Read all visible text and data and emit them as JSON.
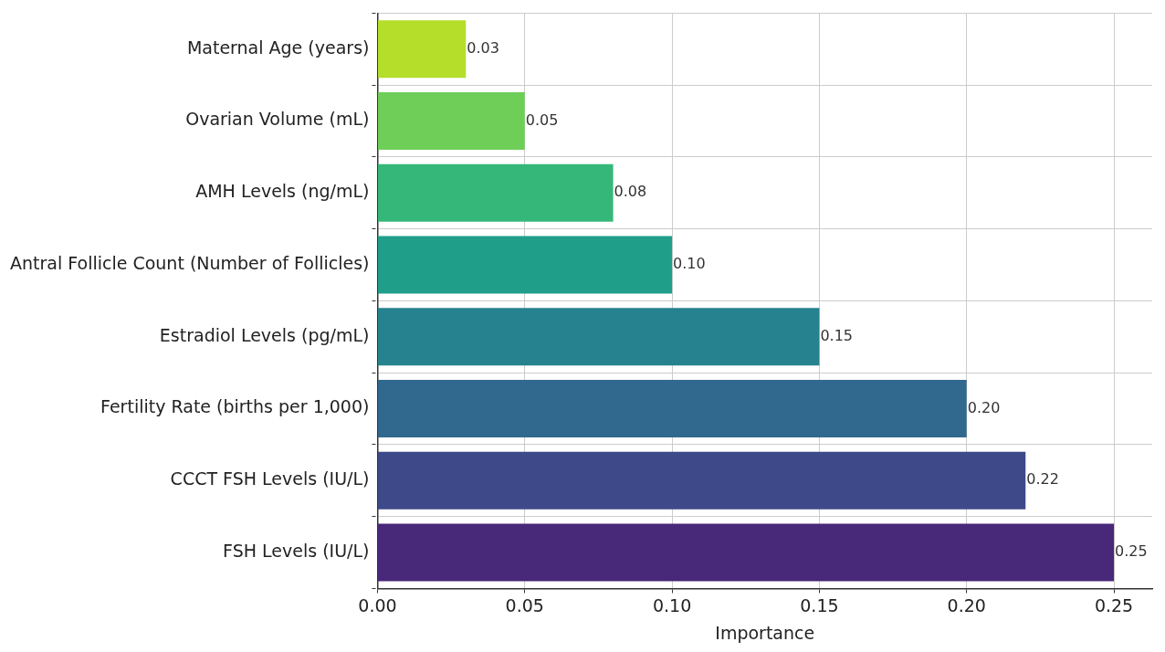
{
  "chart_data": {
    "type": "bar",
    "orientation": "horizontal",
    "xlabel": "Importance",
    "categories": [
      "Maternal Age (years)",
      "Ovarian Volume (mL)",
      "AMH Levels (ng/mL)",
      "Antral Follicle Count (Number of Follicles)",
      "Estradiol Levels (pg/mL)",
      "Fertility Rate (births per 1,000)",
      "CCCT FSH Levels (IU/L)",
      "FSH Levels (IU/L)"
    ],
    "values": [
      0.03,
      0.05,
      0.08,
      0.1,
      0.15,
      0.2,
      0.22,
      0.25
    ],
    "value_labels": [
      "0.03",
      "0.05",
      "0.08",
      "0.10",
      "0.15",
      "0.20",
      "0.22",
      "0.25"
    ],
    "colors": [
      "#b5de2b",
      "#6ece58",
      "#35b779",
      "#1f9e89",
      "#26828e",
      "#31688e",
      "#3e4989",
      "#482878"
    ],
    "xlim": [
      0,
      0.263
    ],
    "xticks": [
      {
        "value": 0,
        "label": "0.00"
      },
      {
        "value": 0.05,
        "label": "0.05"
      },
      {
        "value": 0.1,
        "label": "0.10"
      },
      {
        "value": 0.15,
        "label": "0.15"
      },
      {
        "value": 0.2,
        "label": "0.20"
      },
      {
        "value": 0.25,
        "label": "0.25"
      }
    ],
    "grid": true,
    "legend": false
  }
}
